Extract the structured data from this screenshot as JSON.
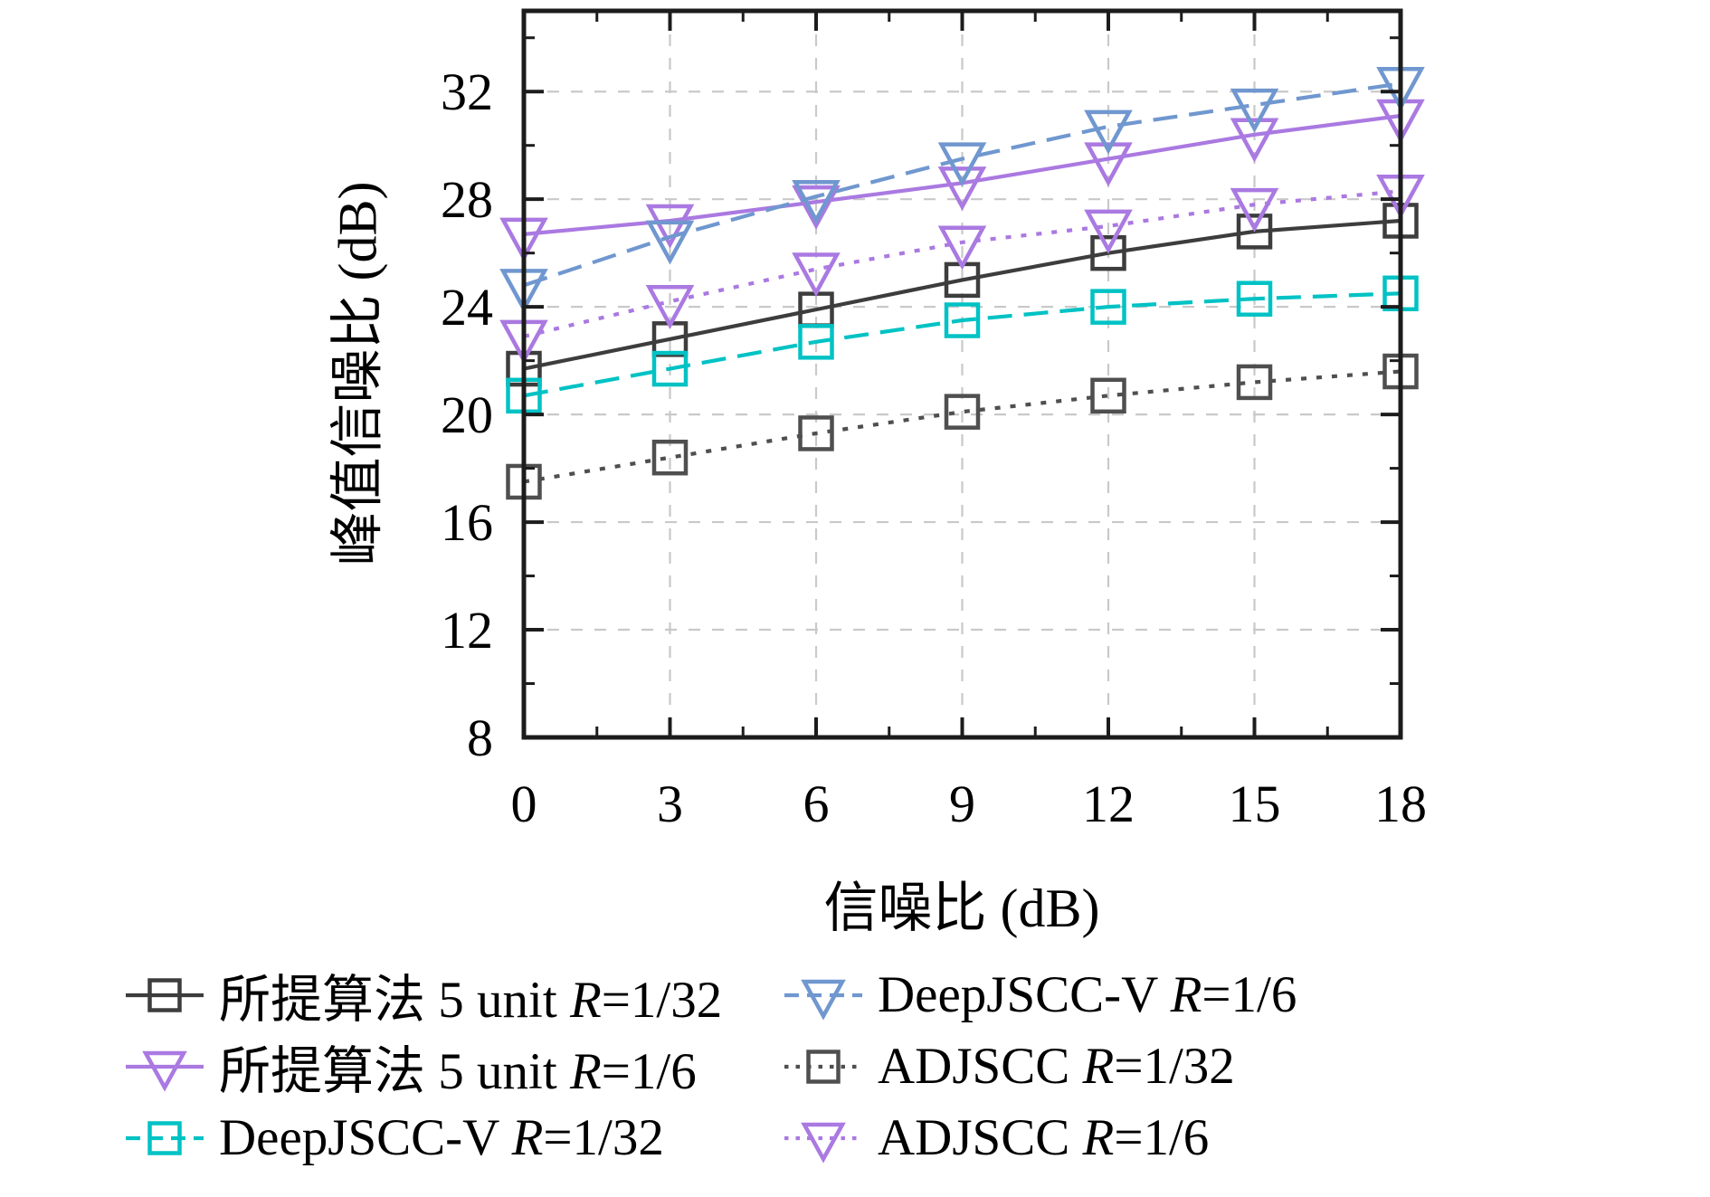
{
  "figure": {
    "background": "#ffffff",
    "spine_color": "#1c1c1c",
    "grid_color": "#c9c9c9",
    "text_color": "#000000"
  },
  "chart_data": {
    "type": "line",
    "title": "",
    "xlabel": "信噪比 (dB)",
    "ylabel": "峰值信噪比 (dB)",
    "x": [
      0,
      3,
      6,
      9,
      12,
      15,
      18
    ],
    "x_ticks": [
      0,
      3,
      6,
      9,
      12,
      15,
      18
    ],
    "y_ticks": [
      8,
      12,
      16,
      20,
      24,
      28,
      32
    ],
    "x_minor_ticks": [
      1.5,
      4.5,
      7.5,
      10.5,
      13.5,
      16.5
    ],
    "y_minor_ticks": [
      10,
      14,
      18,
      22,
      26,
      30,
      34
    ],
    "xlim": [
      0,
      18
    ],
    "ylim": [
      8,
      35
    ],
    "grid": true,
    "grid_style": "dashed",
    "legend_position": "below-two-columns",
    "series": [
      {
        "id": "proposed-r132",
        "name": "所提算法 5 unit R=1/32",
        "values": [
          21.7,
          22.8,
          23.9,
          25.0,
          26.0,
          26.8,
          27.2
        ],
        "color": "#3d3d3d",
        "line": "solid",
        "marker": "square"
      },
      {
        "id": "proposed-r16",
        "name": "所提算法 5 unit R=1/6",
        "values": [
          26.7,
          27.2,
          27.9,
          28.6,
          29.5,
          30.4,
          31.1
        ],
        "color": "#aa79e1",
        "line": "solid",
        "marker": "triangle-down"
      },
      {
        "id": "deepjsccv-r132",
        "name": "DeepJSCC-V R=1/32",
        "values": [
          20.7,
          21.7,
          22.7,
          23.5,
          24.0,
          24.3,
          24.5
        ],
        "color": "#00c2c4",
        "line": "dashed",
        "marker": "square"
      },
      {
        "id": "deepjsccv-r16",
        "name": "DeepJSCC-V R=1/6",
        "values": [
          24.8,
          26.6,
          28.1,
          29.5,
          30.7,
          31.5,
          32.3
        ],
        "color": "#7097cf",
        "line": "dashed",
        "marker": "triangle-down"
      },
      {
        "id": "adjscc-r132",
        "name": "ADJSCC R=1/32",
        "values": [
          17.5,
          18.4,
          19.3,
          20.1,
          20.7,
          21.2,
          21.6
        ],
        "color": "#4f4f4f",
        "line": "dotted",
        "marker": "square"
      },
      {
        "id": "adjscc-r16",
        "name": "ADJSCC R=1/6",
        "values": [
          22.9,
          24.2,
          25.4,
          26.4,
          27.0,
          27.8,
          28.3
        ],
        "color": "#aa79e1",
        "line": "dotted",
        "marker": "triangle-down"
      }
    ]
  },
  "legend": {
    "columns": [
      [
        "proposed-r132",
        "proposed-r16",
        "deepjsccv-r132"
      ],
      [
        "deepjsccv-r16",
        "adjscc-r132",
        "adjscc-r16"
      ]
    ]
  }
}
